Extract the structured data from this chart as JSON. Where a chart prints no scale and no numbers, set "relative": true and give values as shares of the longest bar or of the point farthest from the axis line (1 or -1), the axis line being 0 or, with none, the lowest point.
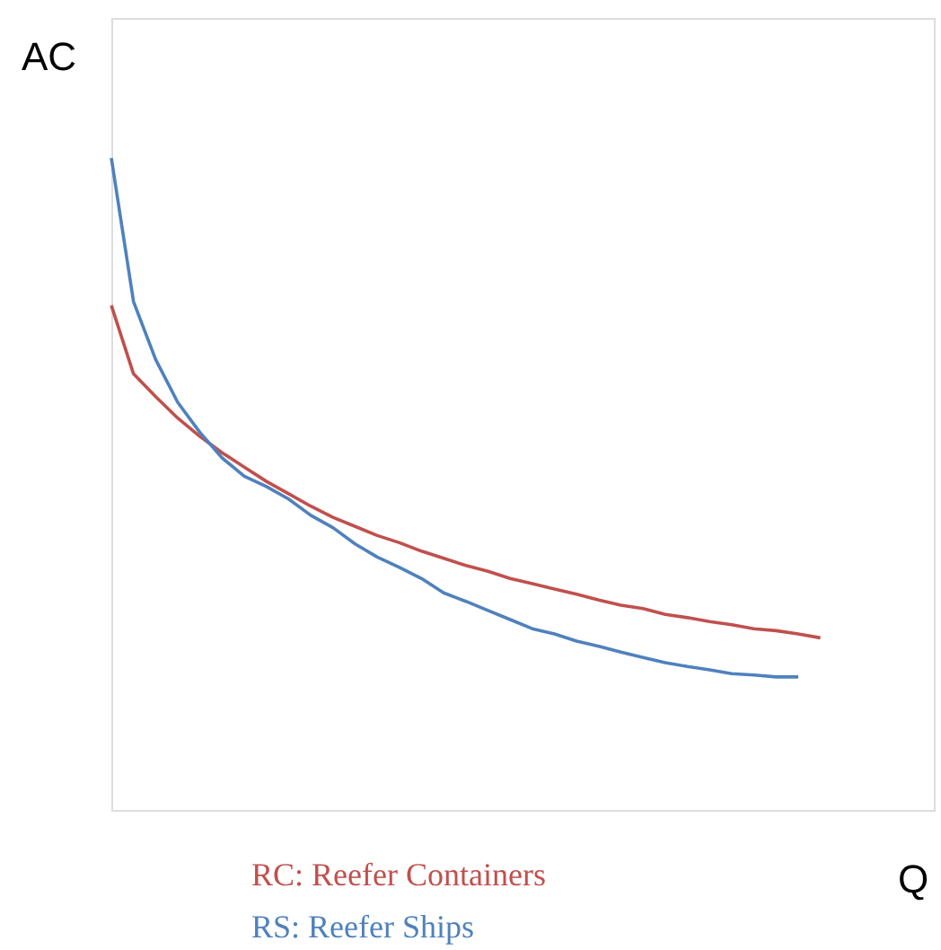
{
  "chart_data": {
    "type": "line",
    "relative": true,
    "xlabel": "Q",
    "ylabel": "AC",
    "legend": "bottom",
    "grid": false,
    "categories": [
      null,
      null,
      null,
      null,
      null,
      null,
      null,
      null,
      null,
      null,
      null,
      null,
      null,
      null,
      null,
      null,
      null,
      null,
      null,
      null,
      null,
      null,
      null,
      null,
      null,
      null,
      null,
      null,
      null,
      null,
      null,
      null,
      null
    ],
    "series": [
      {
        "name": "RC: Reefer Containers",
        "color": "#c0504d",
        "values": [
          0.774,
          0.669,
          0.634,
          0.601,
          0.573,
          0.548,
          0.526,
          0.504,
          0.485,
          0.466,
          0.449,
          0.435,
          0.421,
          0.41,
          0.397,
          0.386,
          0.375,
          0.366,
          0.355,
          0.347,
          0.339,
          0.331,
          0.322,
          0.314,
          0.309,
          0.3,
          0.295,
          0.289,
          0.284,
          0.278,
          0.275,
          0.27,
          0.264
        ]
      },
      {
        "name": "RS: Reefer Ships",
        "color": "#4f81bd",
        "values": [
          1.0,
          0.78,
          0.691,
          0.625,
          0.579,
          0.54,
          0.512,
          0.496,
          0.477,
          0.452,
          0.433,
          0.408,
          0.388,
          0.372,
          0.355,
          0.333,
          0.32,
          0.306,
          0.292,
          0.278,
          0.27,
          0.259,
          0.251,
          0.242,
          0.234,
          0.226,
          0.22,
          0.215,
          0.209,
          0.207,
          0.204,
          0.204,
          null
        ]
      }
    ]
  }
}
